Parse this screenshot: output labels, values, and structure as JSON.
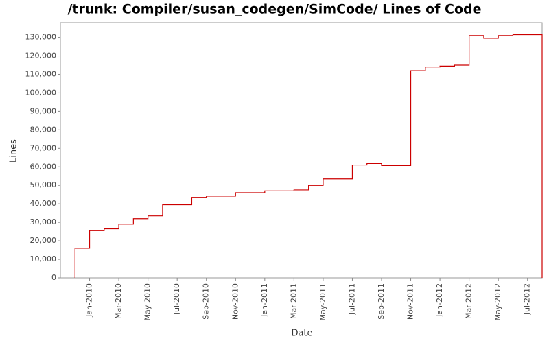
{
  "chart_data": {
    "type": "step-line",
    "title": "/trunk: Compiler/susan_codegen/SimCode/ Lines of Code",
    "x_label": "Date",
    "y_label": "Lines",
    "color": "#cc0000",
    "x": [
      "2009-12",
      "2009-12",
      "2010-01",
      "2010-02",
      "2010-03",
      "2010-04",
      "2010-05",
      "2010-06",
      "2010-08",
      "2010-09",
      "2010-11",
      "2011-01",
      "2011-03",
      "2011-04",
      "2011-05",
      "2011-07",
      "2011-08",
      "2011-09",
      "2011-11",
      "2011-12",
      "2012-01",
      "2012-02",
      "2012-03",
      "2012-04",
      "2012-05",
      "2012-06",
      "2012-07",
      "2012-08"
    ],
    "values": [
      0,
      16000,
      25500,
      26500,
      29000,
      32000,
      33500,
      39500,
      43500,
      44200,
      46000,
      47000,
      47500,
      50000,
      53500,
      61000,
      61800,
      60700,
      112000,
      114000,
      114500,
      115000,
      131000,
      129500,
      131000,
      131500,
      131500,
      0
    ],
    "xlim": [
      "2009-11",
      "2012-08"
    ],
    "xticks": [
      {
        "value": "2010-01",
        "label": "Jan-2010"
      },
      {
        "value": "2010-03",
        "label": "Mar-2010"
      },
      {
        "value": "2010-05",
        "label": "May-2010"
      },
      {
        "value": "2010-07",
        "label": "Jul-2010"
      },
      {
        "value": "2010-09",
        "label": "Sep-2010"
      },
      {
        "value": "2010-11",
        "label": "Nov-2010"
      },
      {
        "value": "2011-01",
        "label": "Jan-2011"
      },
      {
        "value": "2011-03",
        "label": "Mar-2011"
      },
      {
        "value": "2011-05",
        "label": "May-2011"
      },
      {
        "value": "2011-07",
        "label": "Jul-2011"
      },
      {
        "value": "2011-09",
        "label": "Sep-2011"
      },
      {
        "value": "2011-11",
        "label": "Nov-2011"
      },
      {
        "value": "2012-01",
        "label": "Jan-2012"
      },
      {
        "value": "2012-03",
        "label": "Mar-2012"
      },
      {
        "value": "2012-05",
        "label": "May-2012"
      },
      {
        "value": "2012-07",
        "label": "Jul-2012"
      }
    ],
    "ylim": [
      0,
      138000
    ],
    "yticks": [
      0,
      {
        "value": 10000,
        "label": "10,000"
      },
      {
        "value": 20000,
        "label": "20,000"
      },
      {
        "value": 30000,
        "label": "30,000"
      },
      {
        "value": 40000,
        "label": "40,000"
      },
      {
        "value": 50000,
        "label": "50,000"
      },
      {
        "value": 60000,
        "label": "60,000"
      },
      {
        "value": 70000,
        "label": "70,000"
      },
      {
        "value": 80000,
        "label": "80,000"
      },
      {
        "value": 90000,
        "label": "90,000"
      },
      {
        "value": 100000,
        "label": "100,000"
      },
      {
        "value": 110000,
        "label": "110,000"
      },
      {
        "value": 120000,
        "label": "120,000"
      },
      {
        "value": 130000,
        "label": "130,000"
      }
    ]
  }
}
